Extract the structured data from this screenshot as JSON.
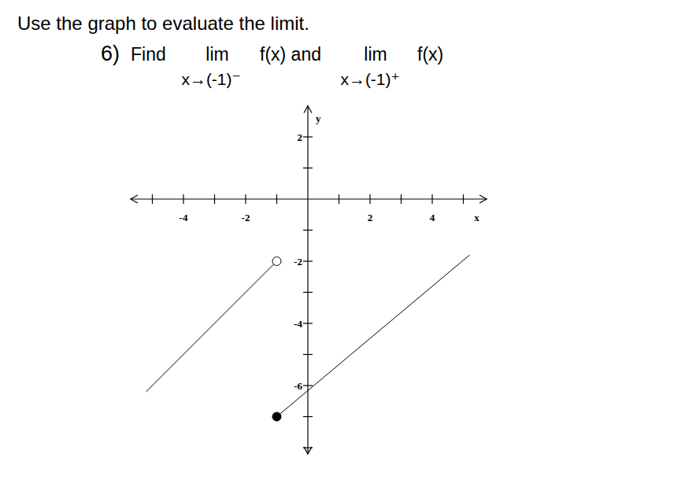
{
  "chart_data": {
    "type": "line",
    "title": "Use the graph to evaluate the limit.",
    "annotations": [
      "6)",
      "Find",
      "lim",
      "x→(-1)⁻",
      "f(x) and",
      "lim",
      "x→(-1)⁺",
      "f(x)"
    ],
    "x_label": "x",
    "y_label": "y",
    "xlim": [
      -5.7,
      5.75
    ],
    "ylim": [
      -8.2,
      3
    ],
    "xticks": [
      -4,
      -2,
      2,
      4
    ],
    "yticks": [
      -6,
      -4,
      -2,
      2
    ],
    "xminor": [
      -5,
      -3,
      -1,
      1,
      3,
      5
    ],
    "yminor": [
      -8,
      -7,
      -5,
      -3,
      -1,
      1
    ],
    "color": "#000000",
    "series": [
      {
        "type": "line",
        "x": [
          -5.2,
          -1
        ],
        "values": [
          -6.2,
          -2
        ]
      },
      {
        "type": "line",
        "x": [
          -1,
          5.2
        ],
        "values": [
          -7,
          -1.8
        ]
      },
      {
        "type": "scatter",
        "marker": "open",
        "x": [
          -1
        ],
        "values": [
          -2
        ]
      },
      {
        "type": "scatter",
        "marker": "filled",
        "x": [
          -1
        ],
        "values": [
          -7
        ]
      }
    ]
  }
}
